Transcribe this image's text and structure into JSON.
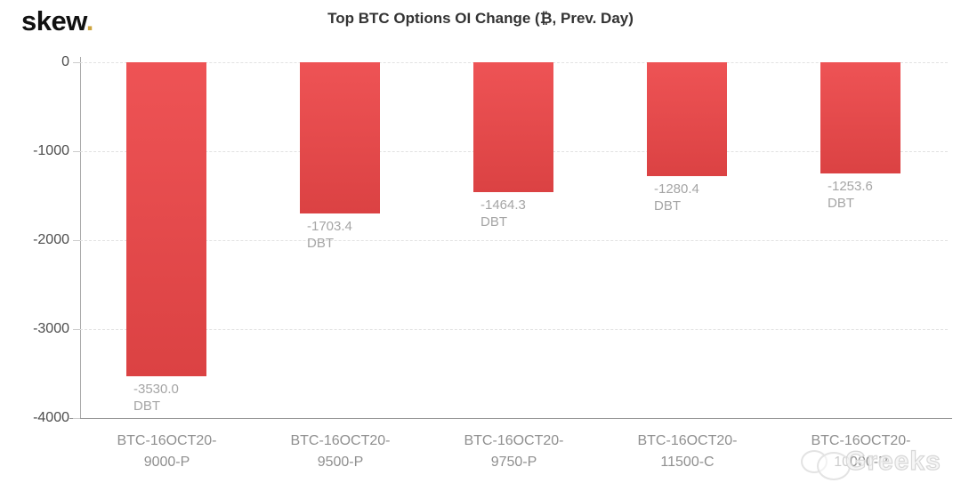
{
  "header": {
    "logo_text": "skew",
    "logo_dot": ".",
    "logo_dot_color": "#cda43f",
    "title": "Top BTC Options OI Change (₿, Prev. Day)"
  },
  "watermark": {
    "text": "Greeks",
    "icon": "chat-bubbles-icon",
    "color": "#d7d7d7"
  },
  "colors": {
    "bar_red_top": "#ee5355",
    "bar_red_bottom": "#db4243",
    "gridline": "#e2e2e2",
    "axis_line": "#9a9a9a",
    "y_tick_label": "#4d4d4d",
    "x_tick_label": "#8f8f8f",
    "value_label": "#a5a5a5",
    "title_text": "#333333",
    "background": "#ffffff"
  },
  "chart_data": {
    "type": "bar",
    "title": "Top BTC Options OI Change (₿, Prev. Day)",
    "categories": [
      "BTC-16OCT20-9000-P",
      "BTC-16OCT20-9500-P",
      "BTC-16OCT20-9750-P",
      "BTC-16OCT20-11500-C",
      "BTC-16OCT20-10000-P"
    ],
    "categories_display": [
      {
        "line1": "BTC-16OCT20-",
        "line2": "9000-P"
      },
      {
        "line1": "BTC-16OCT20-",
        "line2": "9500-P"
      },
      {
        "line1": "BTC-16OCT20-",
        "line2": "9750-P"
      },
      {
        "line1": "BTC-16OCT20-",
        "line2": "11500-C"
      },
      {
        "line1": "BTC-16OCT20-",
        "line2": "10000-P"
      }
    ],
    "values": [
      -3530.0,
      -1703.4,
      -1464.3,
      -1280.4,
      -1253.6
    ],
    "value_labels": [
      "-3530.0",
      "-1703.4",
      "-1464.3",
      "-1280.4",
      "-1253.6"
    ],
    "unit_label": "DBT",
    "xlabel": "",
    "ylabel": "",
    "ylim": [
      -4000,
      0
    ],
    "yticks": [
      0,
      -1000,
      -2000,
      -3000,
      -4000
    ],
    "grid": "horizontal-dashed",
    "legend": "none",
    "bar_orientation": "vertical-negative"
  }
}
